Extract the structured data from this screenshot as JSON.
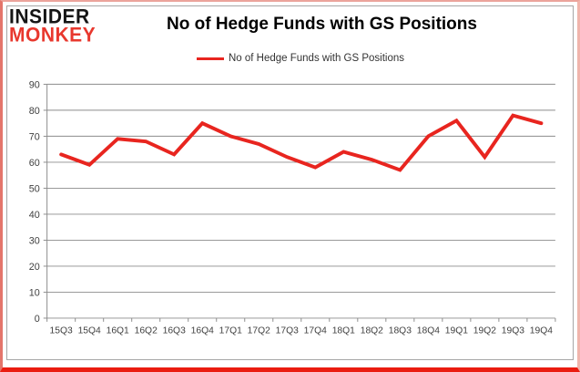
{
  "logo": {
    "line1": "INSIDER",
    "line2": "MONKEY"
  },
  "header": {
    "title": "No of Hedge Funds with GS Positions"
  },
  "legend": {
    "label": "No of Hedge Funds with GS Positions"
  },
  "colors": {
    "series": "#e8251f",
    "grid": "#8c8c8c",
    "axis_text": "#404040",
    "logo_black": "#151515",
    "logo_red": "#e8382e",
    "frame_border": "#ea1c10",
    "box_border": "#a6a6a6"
  },
  "chart_data": {
    "type": "line",
    "title": "No of Hedge Funds with GS Positions",
    "categories": [
      "15Q3",
      "15Q4",
      "16Q1",
      "16Q2",
      "16Q3",
      "16Q4",
      "17Q1",
      "17Q2",
      "17Q3",
      "17Q4",
      "18Q1",
      "18Q2",
      "18Q3",
      "18Q4",
      "19Q1",
      "19Q2",
      "19Q3",
      "19Q4"
    ],
    "series": [
      {
        "name": "No of Hedge Funds with GS Positions",
        "color": "#e8251f",
        "values": [
          63,
          59,
          69,
          68,
          63,
          75,
          70,
          67,
          62,
          58,
          64,
          61,
          57,
          70,
          76,
          62,
          78,
          75
        ]
      }
    ],
    "xlabel": "",
    "ylabel": "",
    "ylim": [
      0,
      90
    ],
    "y_ticks": [
      0,
      10,
      20,
      30,
      40,
      50,
      60,
      70,
      80,
      90
    ],
    "grid": "horizontal",
    "legend_position": "top-center"
  }
}
